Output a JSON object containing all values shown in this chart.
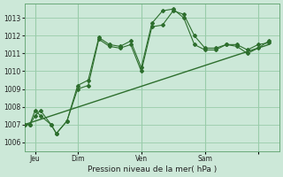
{
  "background_color": "#cce8d8",
  "grid_color": "#99ccaa",
  "line_color": "#2d6e2d",
  "xlabel": "Pression niveau de la mer( hPa )",
  "ylim": [
    1005.5,
    1013.8
  ],
  "yticks": [
    1006,
    1007,
    1008,
    1009,
    1010,
    1011,
    1012,
    1013
  ],
  "xlim": [
    0,
    24
  ],
  "xtick_positions": [
    1,
    5,
    11,
    17,
    22
  ],
  "xtick_labels": [
    "Jeu",
    "Dim",
    "Ven",
    "Sam",
    ""
  ],
  "day_vlines": [
    1,
    5,
    11,
    17,
    22
  ],
  "line1_x": [
    0,
    0.5,
    1,
    1.5,
    2.5,
    3,
    4,
    5,
    6,
    7,
    8,
    9,
    10,
    11,
    12,
    13,
    14,
    15,
    16,
    17,
    18,
    19,
    20,
    21,
    22,
    23
  ],
  "line1_y": [
    1007.0,
    1007.0,
    1007.8,
    1007.5,
    1007.0,
    1006.5,
    1007.2,
    1009.0,
    1009.2,
    1011.8,
    1011.4,
    1011.3,
    1011.5,
    1010.0,
    1012.5,
    1012.6,
    1013.4,
    1013.2,
    1012.0,
    1011.3,
    1011.3,
    1011.5,
    1011.5,
    1011.2,
    1011.5,
    1011.6
  ],
  "line2_x": [
    0,
    0.5,
    1,
    1.5,
    2.5,
    3,
    4,
    5,
    6,
    7,
    8,
    9,
    10,
    11,
    12,
    13,
    14,
    15,
    16,
    17,
    18,
    19,
    20,
    21,
    22,
    23
  ],
  "line2_y": [
    1007.0,
    1007.0,
    1007.5,
    1007.8,
    1007.0,
    1006.5,
    1007.2,
    1009.2,
    1009.5,
    1011.9,
    1011.5,
    1011.4,
    1011.7,
    1010.2,
    1012.7,
    1013.4,
    1013.5,
    1013.0,
    1011.5,
    1011.2,
    1011.2,
    1011.5,
    1011.4,
    1011.0,
    1011.3,
    1011.7
  ],
  "trend_x": [
    0,
    23
  ],
  "trend_y": [
    1007.0,
    1011.5
  ]
}
